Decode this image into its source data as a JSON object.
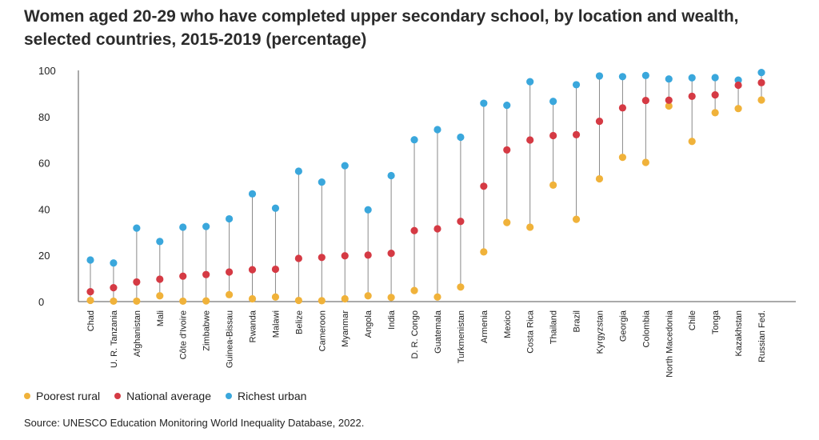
{
  "title_line1": "Women aged 20-29 who have completed upper secondary school, by location and wealth,",
  "title_line2": "selected countries, 2015-2019 (percentage)",
  "source": "Source:  UNESCO Education Monitoring World Inequality Database, 2022.",
  "legend": {
    "poorest_rural": "Poorest rural",
    "national_average": "National average",
    "richest_urban": "Richest urban"
  },
  "colors": {
    "poorest_rural": "#f0b23a",
    "national_average": "#d53a44",
    "richest_urban": "#3aa7dc",
    "stem": "#8a8a8a",
    "axis": "#555555"
  },
  "chart_data": {
    "type": "scatter",
    "title": "Women aged 20-29 who have completed upper secondary school, by location and wealth, selected countries, 2015-2019 (percentage)",
    "xlabel": "",
    "ylabel": "",
    "ylim": [
      0,
      100
    ],
    "yticks": [
      0,
      20,
      40,
      60,
      80,
      100
    ],
    "categories": [
      "Chad",
      "U. R. Tanzania",
      "Afghanistan",
      "Mali",
      "Côte d'Ivoire",
      "Zimbabwe",
      "Guinea-Bissau",
      "Rwanda",
      "Malawi",
      "Belize",
      "Cameroon",
      "Myanmar",
      "Angola",
      "India",
      "D. R. Congo",
      "Guatemala",
      "Turkmenistan",
      "Armenia",
      "Mexico",
      "Costa Rica",
      "Thailand",
      "Brazil",
      "Kyrgyzstan",
      "Georgia",
      "Colombia",
      "North Macedonia",
      "Chile",
      "Tonga",
      "Kazakhstan",
      "Russian Fed."
    ],
    "series": [
      {
        "name": "Poorest rural",
        "key": "poorest_rural",
        "values": [
          0.5,
          0.2,
          0.2,
          2.5,
          0.2,
          0.3,
          3.0,
          1.2,
          2.0,
          0.5,
          0.4,
          1.2,
          2.5,
          1.8,
          4.8,
          2.0,
          6.3,
          21.5,
          34.2,
          32.2,
          50.4,
          35.6,
          53.1,
          62.4,
          60.2,
          84.6,
          69.3,
          81.7,
          83.5,
          87.2
        ]
      },
      {
        "name": "National average",
        "key": "national_average",
        "values": [
          4.3,
          6.0,
          8.5,
          9.7,
          11.0,
          11.7,
          12.8,
          13.8,
          14.0,
          18.7,
          19.1,
          19.8,
          20.1,
          20.9,
          30.7,
          31.5,
          34.7,
          49.9,
          65.6,
          69.9,
          71.8,
          72.2,
          78.0,
          83.8,
          87.0,
          87.1,
          88.8,
          89.4,
          93.6,
          94.7
        ]
      },
      {
        "name": "Richest urban",
        "key": "richest_urban",
        "values": [
          18.0,
          16.7,
          31.8,
          26.0,
          32.2,
          32.5,
          35.8,
          46.6,
          40.4,
          56.4,
          51.7,
          58.8,
          39.7,
          54.5,
          70.0,
          74.4,
          71.1,
          85.8,
          84.9,
          95.1,
          86.6,
          93.8,
          97.6,
          97.3,
          97.8,
          96.3,
          96.8,
          96.9,
          95.8,
          99.1
        ]
      }
    ]
  }
}
